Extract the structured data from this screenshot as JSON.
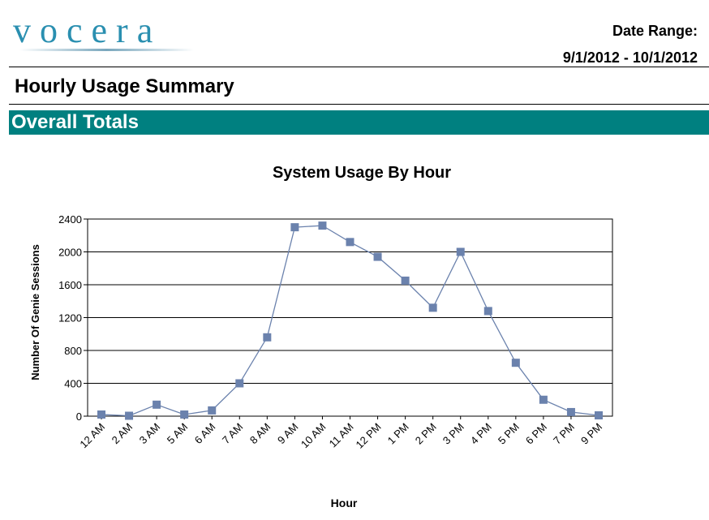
{
  "header": {
    "logo_text": "vocera",
    "date_range_label": "Date Range:",
    "date_range_value": "9/1/2012 - 10/1/2012"
  },
  "report": {
    "title": "Hourly Usage Summary",
    "section": "Overall Totals"
  },
  "colors": {
    "section_bar": "#008080",
    "series": "#6b82ad",
    "logo": "#2a8fb0"
  },
  "chart_data": {
    "type": "line",
    "title": "System Usage By Hour",
    "xlabel": "Hour",
    "ylabel": "Number Of Genie Sessions",
    "ylim": [
      0,
      2400
    ],
    "yticks": [
      "0",
      "400",
      "800",
      "1200",
      "1600",
      "2000",
      "2400"
    ],
    "grid": "horizontal",
    "categories": [
      "12 AM",
      "2 AM",
      "3 AM",
      "5 AM",
      "6 AM",
      "7 AM",
      "8 AM",
      "9 AM",
      "10 AM",
      "11 AM",
      "12 PM",
      "1 PM",
      "2 PM",
      "3 PM",
      "4 PM",
      "5 PM",
      "6 PM",
      "7 PM",
      "9 PM"
    ],
    "series": [
      {
        "values": [
          20,
          5,
          140,
          20,
          70,
          400,
          960,
          2300,
          2320,
          2120,
          1940,
          1650,
          1320,
          2000,
          1280,
          650,
          200,
          50,
          10
        ]
      }
    ]
  }
}
